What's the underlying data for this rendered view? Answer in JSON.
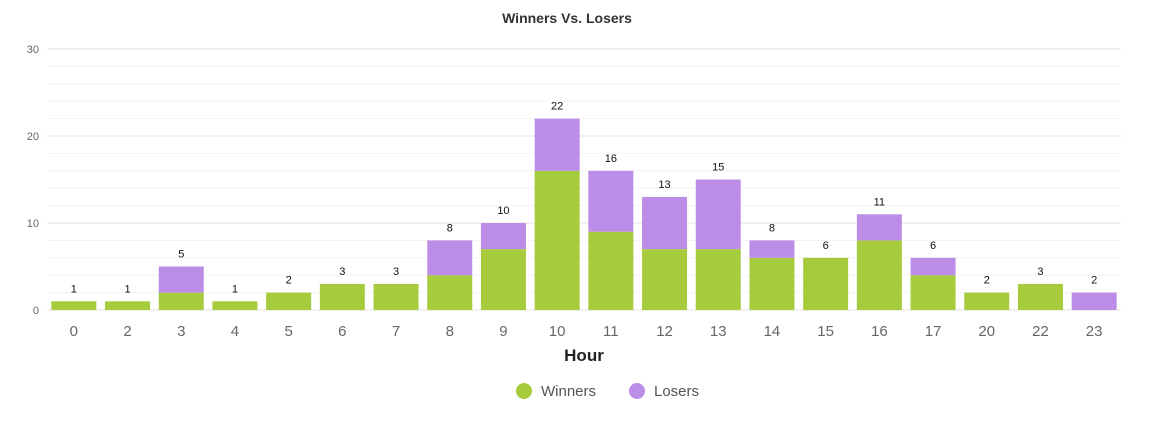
{
  "chart_data": {
    "type": "bar",
    "stacked": true,
    "title": "Winners Vs. Losers",
    "xlabel": "Hour",
    "ylabel": "",
    "ylim": [
      0,
      30
    ],
    "yticks": [
      "0",
      "10",
      "20",
      "30"
    ],
    "grid": true,
    "legend_position": "bottom-center",
    "categories": [
      "0",
      "2",
      "3",
      "4",
      "5",
      "6",
      "7",
      "8",
      "9",
      "10",
      "11",
      "12",
      "13",
      "14",
      "15",
      "16",
      "17",
      "20",
      "22",
      "23"
    ],
    "series": [
      {
        "name": "Winners",
        "color": "#a6cc3d",
        "values": [
          1,
          1,
          2,
          1,
          2,
          3,
          3,
          4,
          7,
          16,
          9,
          7,
          7,
          6,
          6,
          8,
          4,
          2,
          3,
          0
        ]
      },
      {
        "name": "Losers",
        "color": "#bc8de6",
        "values": [
          0,
          0,
          3,
          0,
          0,
          0,
          0,
          4,
          3,
          6,
          7,
          6,
          8,
          2,
          0,
          3,
          2,
          0,
          0,
          2
        ]
      }
    ],
    "totals": [
      "1",
      "1",
      "5",
      "1",
      "2",
      "3",
      "3",
      "8",
      "10",
      "22",
      "16",
      "13",
      "15",
      "8",
      "6",
      "11",
      "6",
      "2",
      "3",
      "2"
    ]
  }
}
